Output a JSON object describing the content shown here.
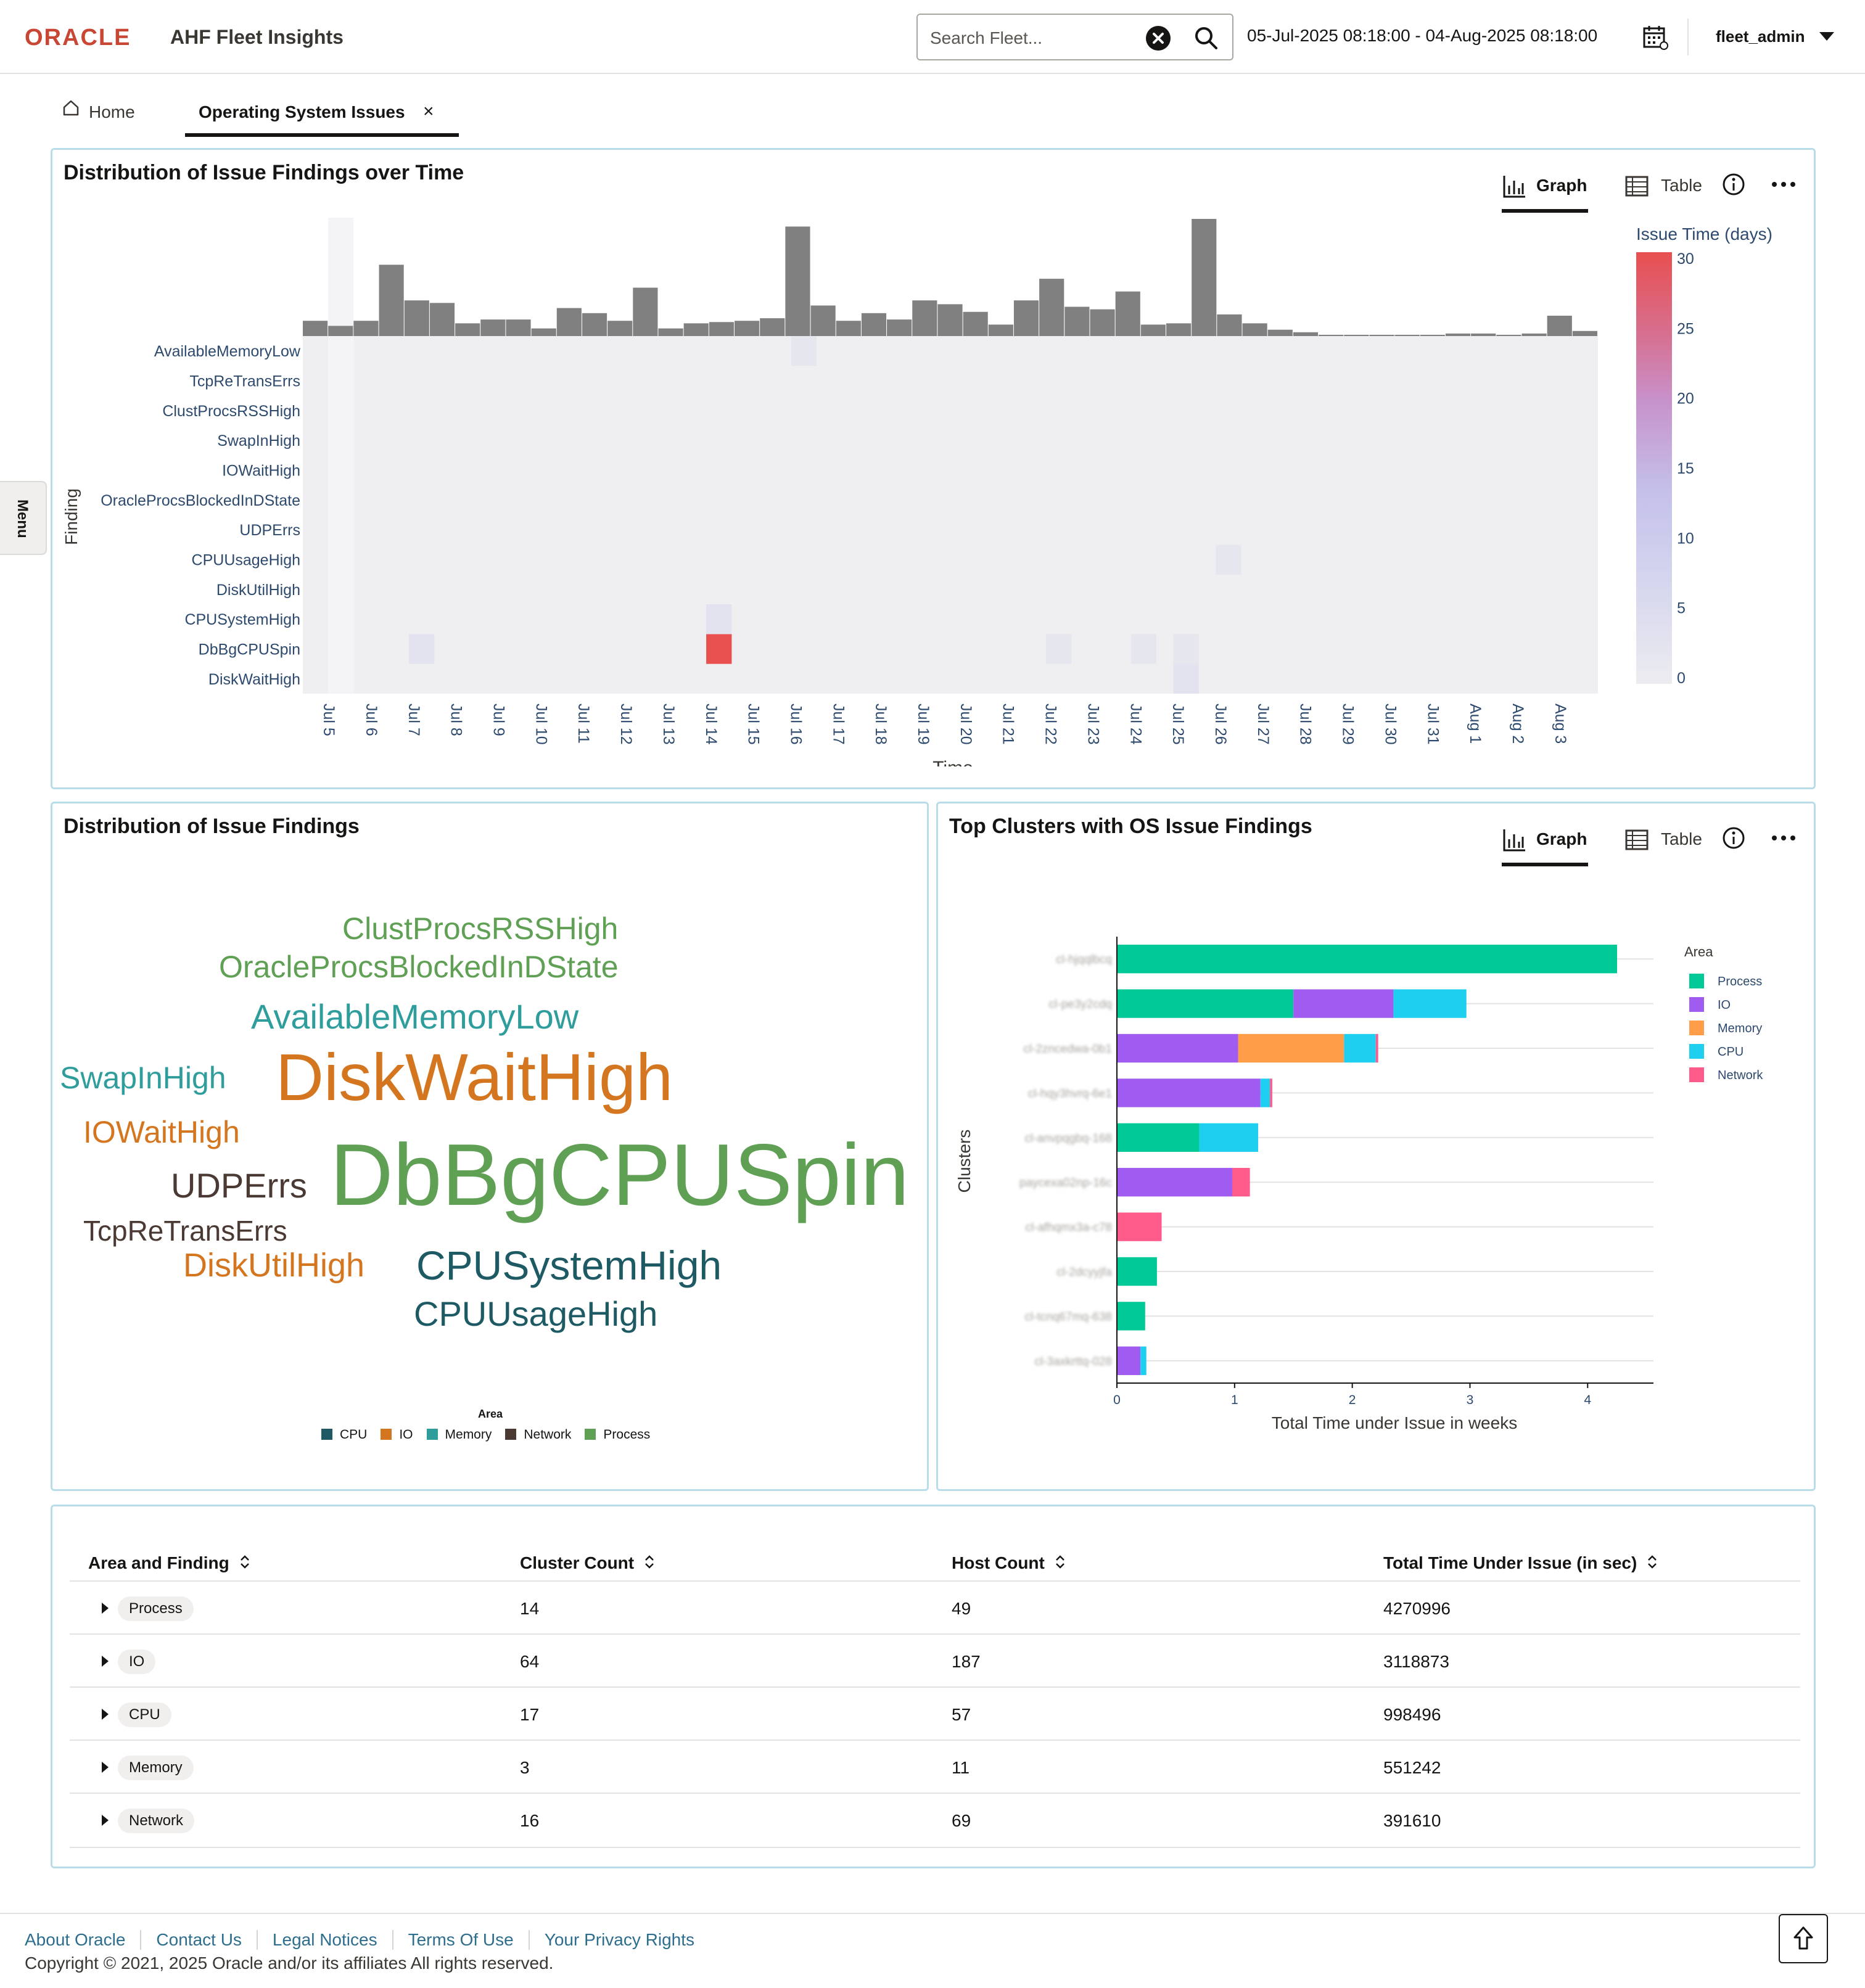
{
  "header": {
    "brand": "ORACLE",
    "app_title": "AHF Fleet Insights",
    "search_placeholder": "Search Fleet...",
    "date_range": "05-Jul-2025 08:18:00 - 04-Aug-2025 08:18:00",
    "user": "fleet_admin"
  },
  "tabs": [
    {
      "label": "Home",
      "icon": "home-icon"
    },
    {
      "label": "Operating System Issues",
      "active": true,
      "close_icon": "×"
    }
  ],
  "side_menu": "Menu",
  "toggle": {
    "graph": "Graph",
    "table": "Table"
  },
  "panel1": {
    "title": "Distribution of Issue Findings over Time",
    "ylabel": "Finding",
    "xlabel": "Time",
    "colorbar_title": "Issue Time (days)",
    "colorbar_ticks": [
      "30",
      "25",
      "20",
      "15",
      "10",
      "5",
      "0"
    ],
    "x_ticks": [
      "Jul 5\n2025",
      "Jul 6",
      "Jul 7",
      "Jul 8",
      "Jul 9",
      "Jul 10",
      "Jul 11",
      "Jul 12",
      "Jul 13",
      "Jul 14",
      "Jul 15",
      "Jul 16",
      "Jul 17",
      "Jul 18",
      "Jul 19",
      "Jul 20",
      "Jul 21",
      "Jul 22",
      "Jul 23",
      "Jul 24",
      "Jul 25",
      "Jul 26",
      "Jul 27",
      "Jul 28",
      "Jul 29",
      "Jul 30",
      "Jul 31",
      "Aug 1",
      "Aug 2",
      "Aug 3"
    ]
  },
  "panel2": {
    "title": "Distribution of Issue Findings",
    "legend_title": "Area",
    "legend": [
      {
        "label": "CPU",
        "color": "#1d5a64"
      },
      {
        "label": "IO",
        "color": "#d4761f"
      },
      {
        "label": "Memory",
        "color": "#2e9d9c"
      },
      {
        "label": "Network",
        "color": "#4a3a33"
      },
      {
        "label": "Process",
        "color": "#5fa055"
      }
    ],
    "words": [
      {
        "text": "ClustProcsRSSHigh",
        "area": "Process"
      },
      {
        "text": "OracleProcsBlockedInDState",
        "area": "Process"
      },
      {
        "text": "AvailableMemoryLow",
        "area": "Memory"
      },
      {
        "text": "SwapInHigh",
        "area": "Memory"
      },
      {
        "text": "DiskWaitHigh",
        "area": "IO"
      },
      {
        "text": "IOWaitHigh",
        "area": "IO"
      },
      {
        "text": "UDPErrs",
        "area": "Network"
      },
      {
        "text": "DbBgCPUSpin",
        "area": "Process"
      },
      {
        "text": "TcpReTransErrs",
        "area": "Network"
      },
      {
        "text": "DiskUtilHigh",
        "area": "IO"
      },
      {
        "text": "CPUSystemHigh",
        "area": "CPU"
      },
      {
        "text": "CPUUsageHigh",
        "area": "CPU"
      }
    ]
  },
  "panel3": {
    "title": "Top Clusters with OS Issue Findings",
    "legend_title": "Area",
    "ylabel": "Clusters",
    "xlabel": "Total Time under Issue in weeks"
  },
  "chart_data": [
    {
      "type": "heatmap",
      "title": "Distribution of Issue Findings over Time",
      "xlabel": "Time",
      "ylabel": "Finding",
      "colorbar_title": "Issue Time (days)",
      "zlim": [
        0,
        30
      ],
      "categories_y": [
        "AvailableMemoryLow",
        "TcpReTransErrs",
        "ClustProcsRSSHigh",
        "SwapInHigh",
        "IOWaitHigh",
        "OracleProcsBlockedInDState",
        "UDPErrs",
        "CPUUsageHigh",
        "DiskUtilHigh",
        "CPUSystemHigh",
        "DbBgCPUSpin",
        "DiskWaitHigh"
      ],
      "x": [
        "Jul 5",
        "Jul 6",
        "Jul 7",
        "Jul 8",
        "Jul 9",
        "Jul 10",
        "Jul 11",
        "Jul 12",
        "Jul 13",
        "Jul 14",
        "Jul 15",
        "Jul 16",
        "Jul 17",
        "Jul 18",
        "Jul 19",
        "Jul 20",
        "Jul 21",
        "Jul 22",
        "Jul 23",
        "Jul 24",
        "Jul 25",
        "Jul 26",
        "Jul 27",
        "Jul 28",
        "Jul 29",
        "Jul 30",
        "Jul 31",
        "Aug 1",
        "Aug 2",
        "Aug 3"
      ],
      "marginal_totals": [
        1.2,
        0.8,
        1.2,
        5.6,
        2.8,
        2.6,
        1.0,
        1.3,
        1.3,
        0.6,
        2.2,
        1.8,
        1.2,
        3.8,
        0.6,
        1.0,
        1.1,
        1.2,
        1.4,
        8.6,
        2.4,
        1.2,
        1.8,
        1.3,
        2.8,
        2.5,
        1.9,
        0.9,
        2.8,
        4.5,
        2.3,
        2.1,
        3.5,
        0.9,
        1.0,
        9.2,
        1.7,
        1.0,
        0.5,
        0.3,
        0.1,
        0.1,
        0.1,
        0.1,
        0.1,
        0.2,
        0.2,
        0.1,
        0.2,
        1.6,
        0.4
      ],
      "highlight_cells": [
        {
          "x": "Jul 14",
          "finding": "DbBgCPUSpin",
          "value": 30
        },
        {
          "x": "Jul 14",
          "finding": "CPUSystemHigh",
          "value": 3
        },
        {
          "x": "Jul 7",
          "finding": "DbBgCPUSpin",
          "value": 3
        },
        {
          "x": "Jul 16",
          "finding": "AvailableMemoryLow",
          "value": 2
        },
        {
          "x": "Jul 25",
          "finding": "DbBgCPUSpin",
          "value": 2
        },
        {
          "x": "Jul 25",
          "finding": "DiskWaitHigh",
          "value": 3
        },
        {
          "x": "Jul 24",
          "finding": "DbBgCPUSpin",
          "value": 2
        },
        {
          "x": "Jul 22",
          "finding": "DbBgCPUSpin",
          "value": 2
        },
        {
          "x": "Jul 26",
          "finding": "CPUUsageHigh",
          "value": 2
        }
      ]
    },
    {
      "type": "bar",
      "orientation": "horizontal",
      "stacked": true,
      "title": "Top Clusters with OS Issue Findings",
      "xlabel": "Total Time under Issue in weeks",
      "ylabel": "Clusters",
      "xlim": [
        0,
        4.5
      ],
      "x_ticks": [
        "0",
        "1",
        "2",
        "3",
        "4"
      ],
      "legend_title": "Area",
      "legend_position": "top-right",
      "categories": [
        "cl-hjqqlbcq",
        "cl-pe3y2cdq",
        "cl-2zncedwa-0b1",
        "cl-hqy3hvrq-6e1",
        "cl-anvpqgbq-168",
        "paycexa02np-16c",
        "cl-afhqmx3a-c78",
        "cl-2dcyyjfa",
        "cl-tcnq67mq-638",
        "cl-3axkrttq-028"
      ],
      "series": [
        {
          "name": "Process",
          "color": "#00c896",
          "values": [
            4.25,
            1.5,
            0,
            0,
            0.7,
            0,
            0,
            0.34,
            0.24,
            0
          ]
        },
        {
          "name": "IO",
          "color": "#a05cf0",
          "values": [
            0,
            0.85,
            1.03,
            1.22,
            0,
            0.98,
            0,
            0,
            0,
            0.2
          ]
        },
        {
          "name": "Memory",
          "color": "#ff9d48",
          "values": [
            0,
            0,
            0.9,
            0,
            0,
            0,
            0,
            0,
            0,
            0
          ]
        },
        {
          "name": "CPU",
          "color": "#1fcff0",
          "values": [
            0,
            0.62,
            0.27,
            0.08,
            0.5,
            0,
            0,
            0,
            0,
            0.05
          ]
        },
        {
          "name": "Network",
          "color": "#ff5b8a",
          "values": [
            0,
            0,
            0.02,
            0.02,
            0,
            0.15,
            0.38,
            0,
            0,
            0
          ]
        }
      ]
    }
  ],
  "table": {
    "headers": [
      "Area and Finding",
      "Cluster Count",
      "Host Count",
      "Total Time Under Issue (in sec)"
    ],
    "rows": [
      [
        "Process",
        "14",
        "49",
        "4270996"
      ],
      [
        "IO",
        "64",
        "187",
        "3118873"
      ],
      [
        "CPU",
        "17",
        "57",
        "998496"
      ],
      [
        "Memory",
        "3",
        "11",
        "551242"
      ],
      [
        "Network",
        "16",
        "69",
        "391610"
      ]
    ]
  },
  "footer": {
    "links": [
      "About Oracle",
      "Contact Us",
      "Legal Notices",
      "Terms Of Use",
      "Your Privacy Rights"
    ],
    "copyright": "Copyright © 2021, 2025 Oracle and/or its affiliates All rights reserved."
  }
}
